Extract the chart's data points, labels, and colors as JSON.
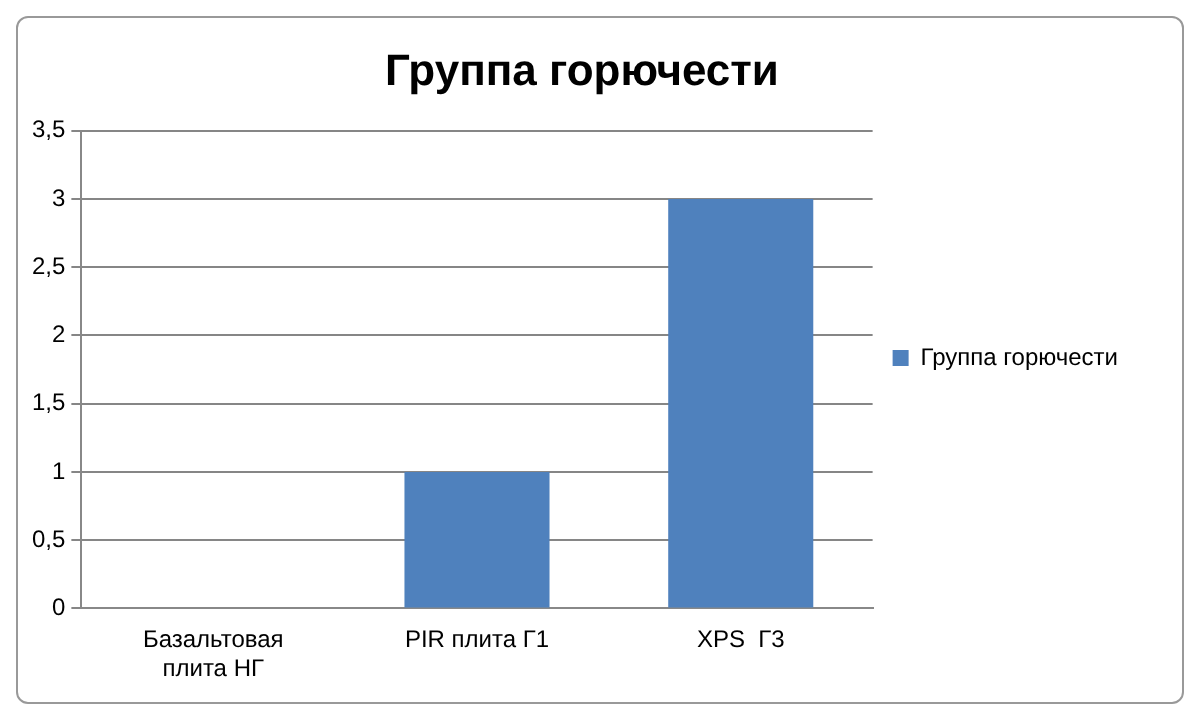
{
  "chart_data": {
    "type": "bar",
    "title": "Группа горючести",
    "categories": [
      "Базальтовая плита НГ",
      "PIR плита Г1",
      "XPS  Г3"
    ],
    "series": [
      {
        "name": "Группа горючести",
        "color": "#4f81bd",
        "values": [
          0,
          1,
          3
        ]
      }
    ],
    "ylim": [
      0,
      3.5
    ],
    "yticks": [
      0,
      {
        "value": 0.5,
        "label": "0,5"
      },
      1,
      {
        "value": 1.5,
        "label": "1,5"
      },
      2,
      {
        "value": 2.5,
        "label": "2,5"
      },
      3,
      {
        "value": 3.5,
        "label": "3,5"
      }
    ],
    "grid": "y",
    "legend": "right"
  }
}
